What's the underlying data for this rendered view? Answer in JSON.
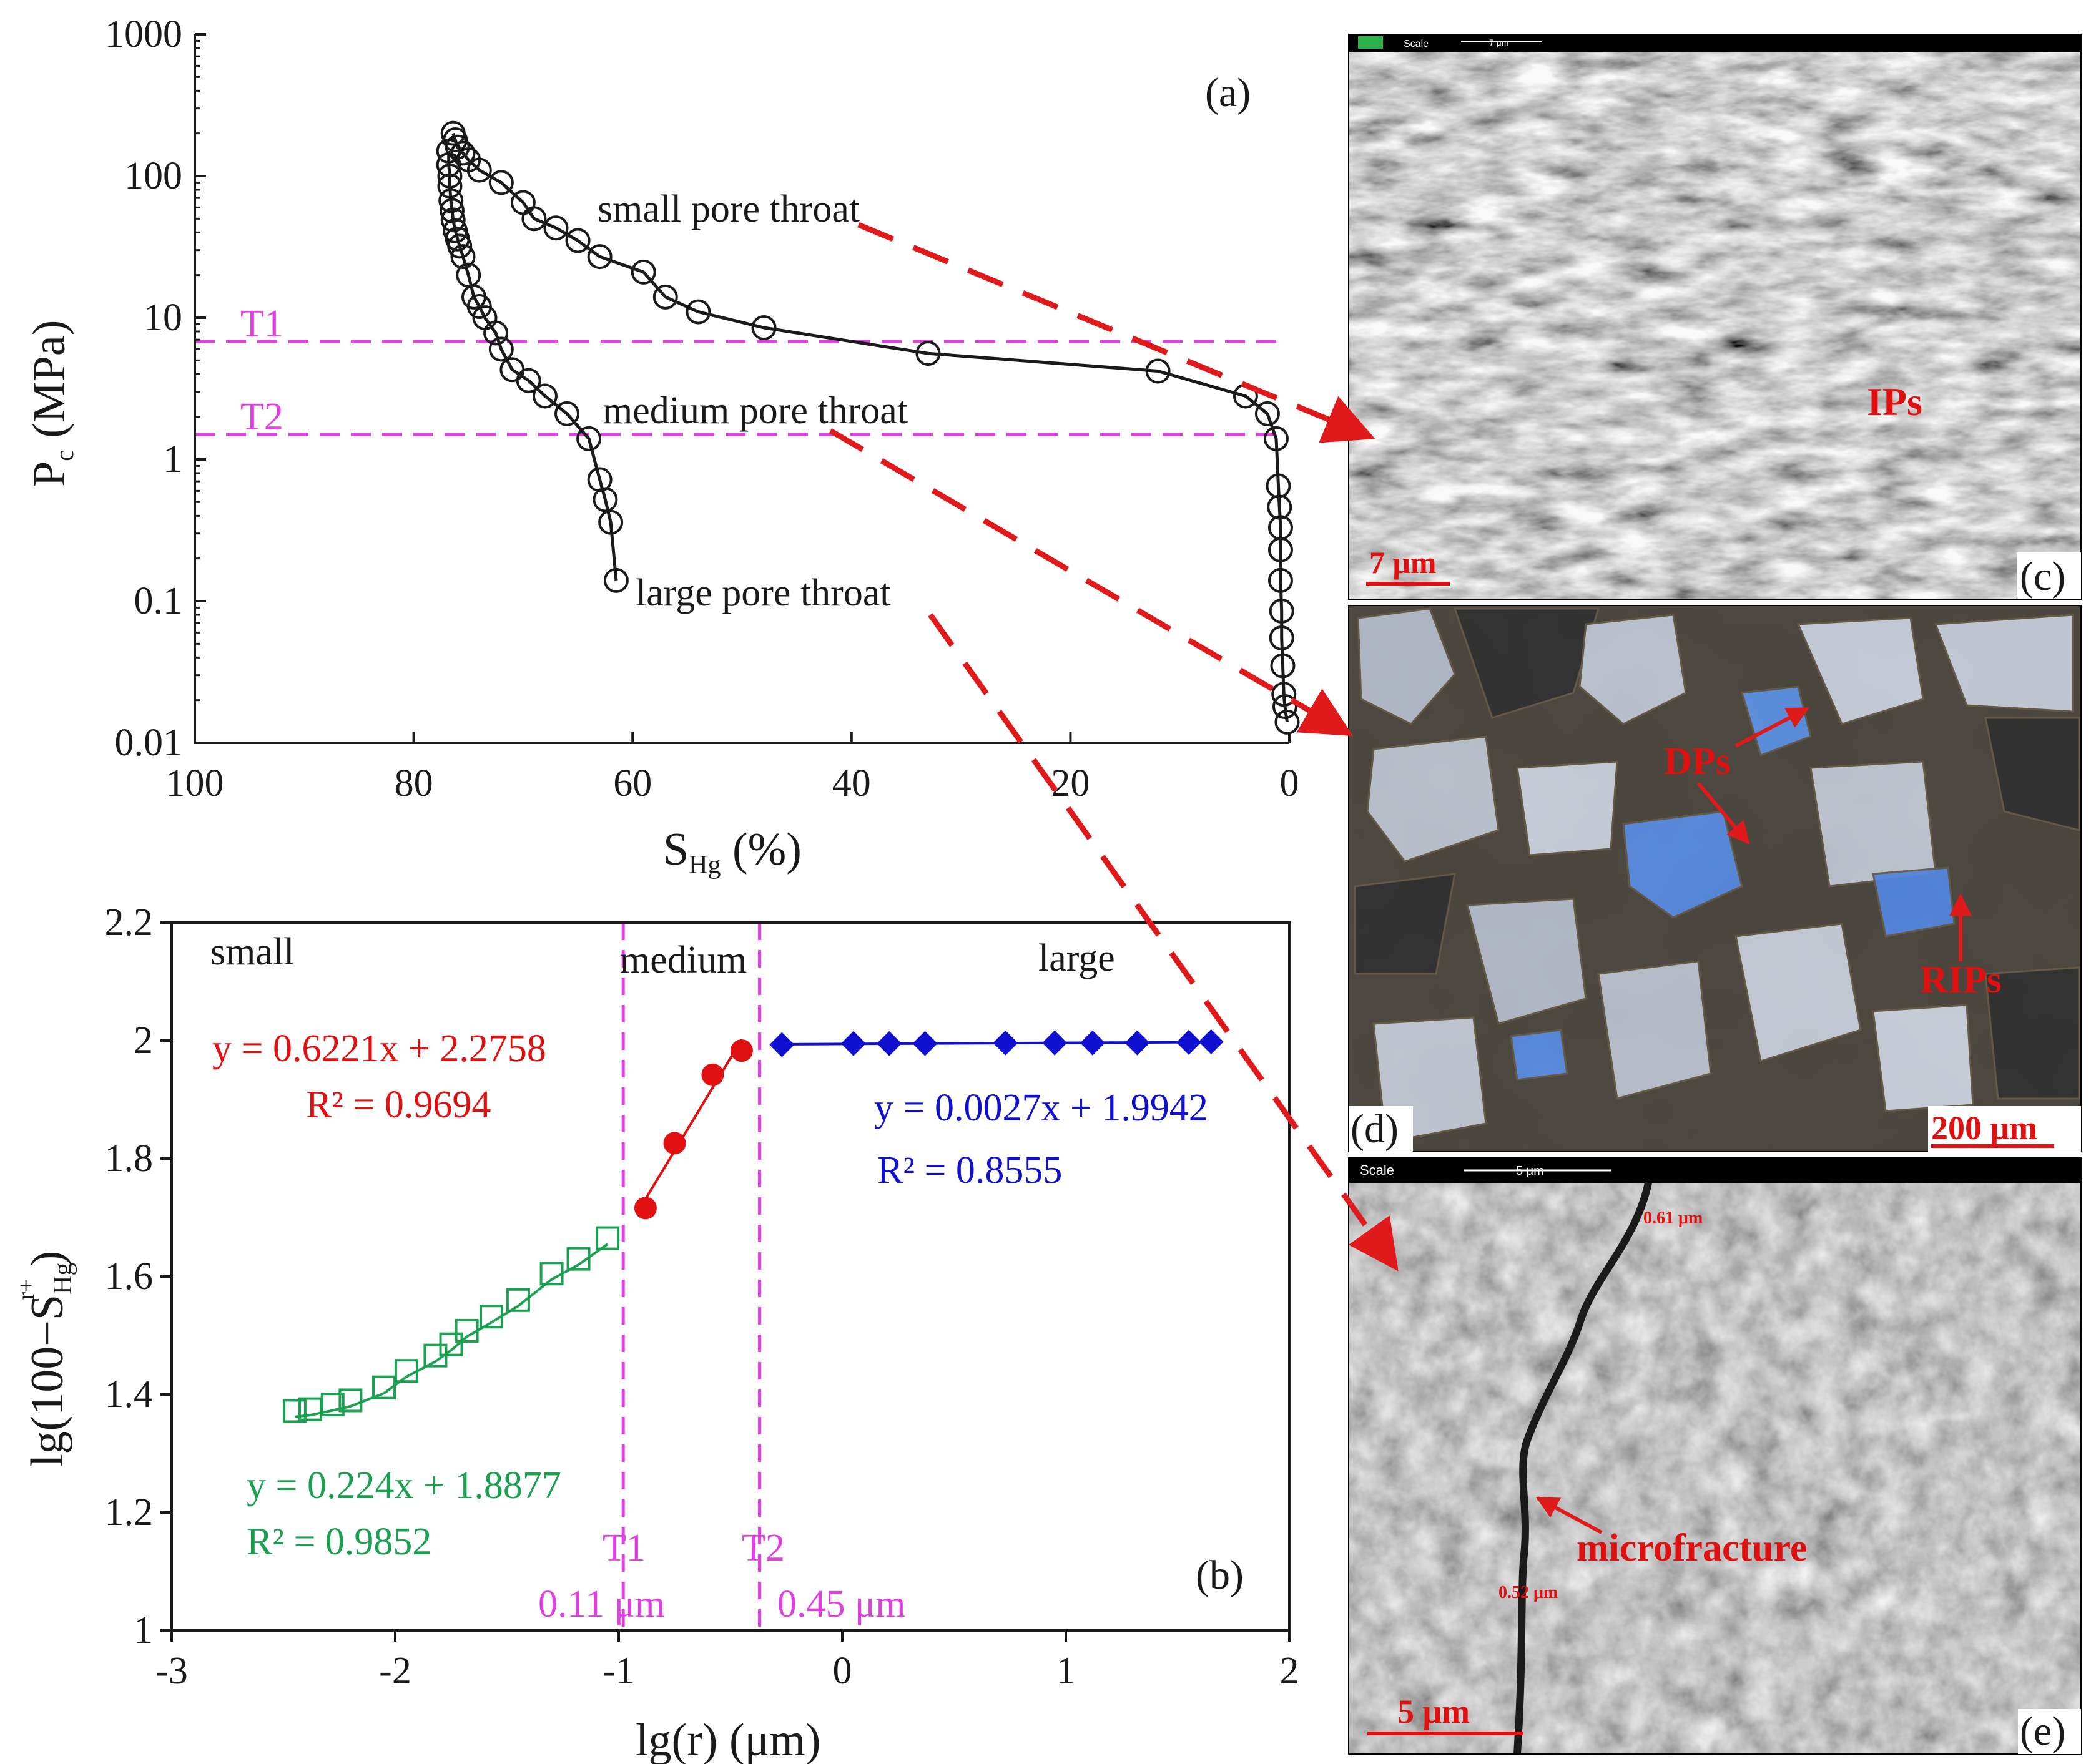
{
  "colors": {
    "magenta": "#e040e0",
    "red": "#e01010",
    "green": "#1aa050",
    "blue": "#1010d0",
    "black": "#1a1a1a",
    "arrow_red": "#e01a1a"
  },
  "chart_data": [
    {
      "id": "a",
      "type": "line",
      "panel_label": "(a)",
      "xlabel_main": "S",
      "xlabel_sub": "Hg",
      "xlabel_tail": " (%)",
      "ylabel_main": "P",
      "ylabel_sub": "c",
      "ylabel_tail": " (MPa)",
      "x_reversed": true,
      "xlim": [
        100,
        0
      ],
      "ylim": [
        0.01,
        1000
      ],
      "y_log": true,
      "x_ticks": [
        100,
        80,
        60,
        40,
        20,
        0
      ],
      "x_tick_labels": [
        "100",
        "80",
        "60",
        "40",
        "20",
        "0"
      ],
      "y_ticks": [
        0.01,
        0.1,
        1,
        10,
        100,
        1000
      ],
      "y_tick_labels": [
        "0.01",
        "0.1",
        "1",
        "10",
        "100",
        "1000"
      ],
      "thresholds": [
        {
          "name": "T1",
          "y": 6.8
        },
        {
          "name": "T2",
          "y": 1.5
        }
      ],
      "annotations": [
        "small pore throat",
        "medium pore throat",
        "large pore throat"
      ],
      "series": [
        {
          "x": [
            0.2,
            0.4,
            0.5,
            0.6,
            0.7,
            0.7,
            0.8,
            0.8,
            0.8,
            0.9,
            1.0,
            1.2,
            2.0,
            4.0,
            12.0,
            33.0,
            48.0,
            54.0,
            57.0,
            59.0,
            63.0,
            65.0,
            67.0,
            69.0,
            70.0,
            72.0,
            74.0,
            75.0,
            75.5,
            76.0,
            76.2,
            76.4
          ],
          "y": [
            0.014,
            0.018,
            0.022,
            0.035,
            0.055,
            0.085,
            0.14,
            0.23,
            0.33,
            0.46,
            0.65,
            1.4,
            2.1,
            2.8,
            4.2,
            5.6,
            8.5,
            11,
            14,
            21,
            27,
            35,
            43,
            50,
            65,
            90,
            110,
            130,
            145,
            160,
            180,
            200
          ]
        },
        {
          "x": [
            61.5,
            62.0,
            62.5,
            63.0,
            64.0,
            66.0,
            68.0,
            69.5,
            71.0,
            72.0,
            72.5,
            73.5,
            74.0,
            74.5,
            75.0,
            75.5,
            75.8,
            76.0,
            76.2,
            76.4,
            76.5,
            76.6,
            76.7,
            76.7,
            76.8,
            76.8
          ],
          "y": [
            0.14,
            0.36,
            0.52,
            0.72,
            1.4,
            2.1,
            2.8,
            3.6,
            4.3,
            6.0,
            7.8,
            10,
            12,
            14,
            20,
            27,
            32,
            36,
            41,
            49,
            57,
            67,
            85,
            100,
            120,
            150
          ]
        }
      ],
      "inset_labels": [
        "(c)",
        "(d)",
        "(e)"
      ]
    },
    {
      "id": "b",
      "type": "scatter",
      "panel_label": "(b)",
      "xlabel": "lg(r) (μm)",
      "ylabel_main": "lg(100−S",
      "ylabel_sub": "Hg",
      "ylabel_sup": "r+",
      "ylabel_tail": ")",
      "xlim": [
        -3,
        2
      ],
      "ylim": [
        1,
        2.2
      ],
      "x_ticks": [
        -3,
        -2,
        -1,
        0,
        1,
        2
      ],
      "x_tick_labels": [
        "-3",
        "-2",
        "-1",
        "0",
        "1",
        "2"
      ],
      "y_ticks": [
        1,
        1.2,
        1.4,
        1.6,
        1.8,
        2,
        2.2
      ],
      "y_tick_labels": [
        "1",
        "1.2",
        "1.4",
        "1.6",
        "1.8",
        "2",
        "2.2"
      ],
      "region_labels": [
        "small",
        "medium",
        "large"
      ],
      "thresholds": [
        {
          "name": "T1",
          "x": -0.98,
          "value_label": "0.11 μm"
        },
        {
          "name": "T2",
          "x": -0.37,
          "value_label": "0.45 μm"
        }
      ],
      "series": [
        {
          "color_key": "green",
          "marker": "open-square",
          "x": [
            -2.45,
            -2.38,
            -2.28,
            -2.2,
            -2.05,
            -1.95,
            -1.82,
            -1.75,
            -1.68,
            -1.57,
            -1.45,
            -1.3,
            -1.18,
            -1.05
          ],
          "y": [
            1.372,
            1.375,
            1.383,
            1.39,
            1.412,
            1.44,
            1.466,
            1.485,
            1.508,
            1.532,
            1.56,
            1.605,
            1.63,
            1.665
          ],
          "fit_x": [
            -2.45,
            -1.05
          ],
          "equation": "y = 0.224x + 1.8877",
          "r2": "R² = 0.9852"
        },
        {
          "color_key": "red",
          "marker": "filled-circle",
          "x": [
            -0.88,
            -0.75,
            -0.58,
            -0.45
          ],
          "y": [
            1.716,
            1.826,
            1.942,
            1.983
          ],
          "fit_x": [
            -0.88,
            -0.45
          ],
          "equation": "y = 0.6221x + 2.2758",
          "r2": "R² = 0.9694"
        },
        {
          "color_key": "blue",
          "marker": "filled-diamond",
          "x": [
            -0.27,
            0.05,
            0.21,
            0.37,
            0.73,
            0.95,
            1.12,
            1.32,
            1.55,
            1.65
          ],
          "y": [
            1.993,
            1.995,
            1.995,
            1.995,
            1.996,
            1.996,
            1.996,
            1.996,
            1.997,
            1.998
          ],
          "fit_x": [
            -0.27,
            1.65
          ],
          "equation": "y = 0.0027x + 1.9942",
          "r2": "R² = 0.8555"
        }
      ]
    }
  ],
  "micrographs": {
    "c": {
      "label": "(c)",
      "scale_bar": "7 μm",
      "header_scale": "Scale",
      "header_scale_value": "7 μm",
      "feature": "IPs"
    },
    "d": {
      "label": "(d)",
      "scale_bar": "200 μm",
      "features": [
        "DPs",
        "RIPs"
      ]
    },
    "e": {
      "label": "(e)",
      "scale_bar": "5 μm",
      "header_scale": "Scale",
      "header_scale_value": "5 μm",
      "feature": "microfracture",
      "width_labels": [
        "0.61 μm",
        "0.52 μm"
      ]
    }
  }
}
